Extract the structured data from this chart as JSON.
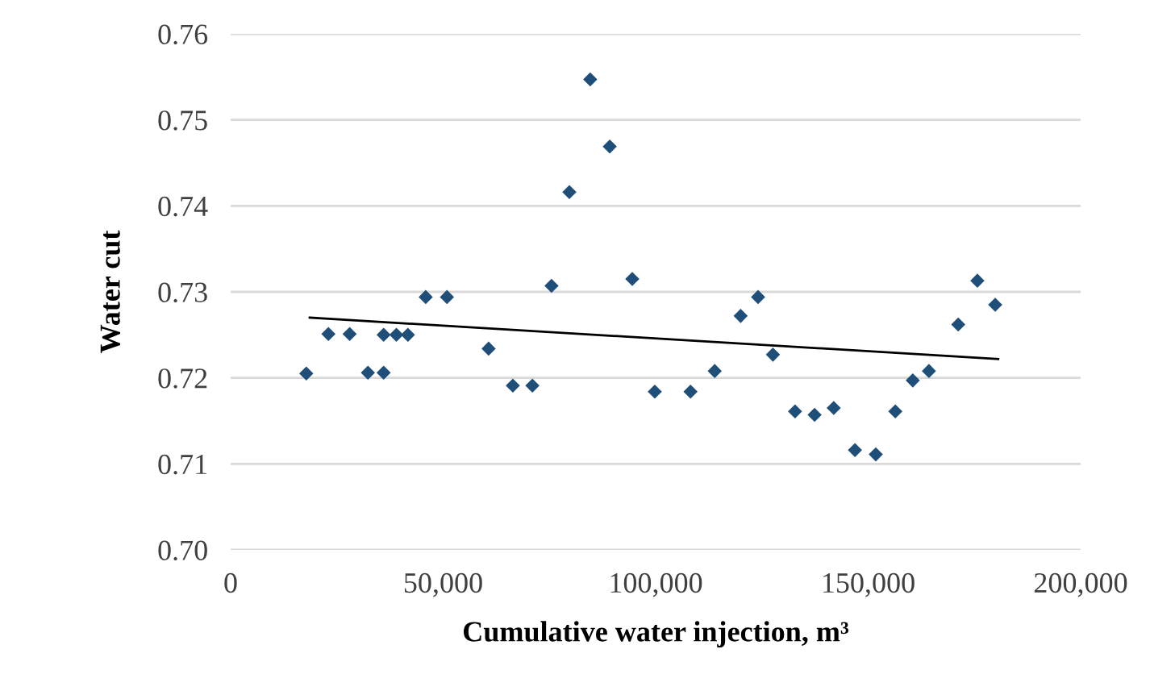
{
  "chart_data": {
    "type": "scatter",
    "xlabel": "Cumulative water injection, m³",
    "ylabel": "Water cut",
    "xlim": [
      0,
      200000
    ],
    "xticks": [
      {
        "value": 0,
        "label": "0"
      },
      {
        "value": 50000,
        "label": "50,000"
      },
      {
        "value": 100000,
        "label": "100,000"
      },
      {
        "value": 150000,
        "label": "150,000"
      },
      {
        "value": 200000,
        "label": "200,000"
      }
    ],
    "ylim": [
      0.7,
      0.76
    ],
    "yticks": [
      {
        "value": 0.7,
        "label": "0.70"
      },
      {
        "value": 0.71,
        "label": "0.71"
      },
      {
        "value": 0.72,
        "label": "0.72"
      },
      {
        "value": 0.73,
        "label": "0.73"
      },
      {
        "value": 0.74,
        "label": "0.74"
      },
      {
        "value": 0.75,
        "label": "0.75"
      },
      {
        "value": 0.76,
        "label": "0.76"
      }
    ],
    "grid": "y",
    "legend": false,
    "series": [
      {
        "marker": "diamond",
        "color": "#1f4e79",
        "x": [
          17800,
          23000,
          28000,
          32300,
          36000,
          36000,
          39000,
          41700,
          45900,
          50900,
          60700,
          66400,
          71000,
          75500,
          79700,
          84600,
          89200,
          94500,
          99800,
          108200,
          113900,
          120000,
          124100,
          127600,
          132800,
          137400,
          141900,
          146900,
          151800,
          156400,
          160500,
          164300,
          171200,
          175700,
          179900
        ],
        "values": [
          0.7205,
          0.7251,
          0.7251,
          0.7206,
          0.7206,
          0.725,
          0.725,
          0.725,
          0.7294,
          0.7294,
          0.7234,
          0.7191,
          0.7191,
          0.7307,
          0.7416,
          0.7547,
          0.7469,
          0.7315,
          0.7184,
          0.7184,
          0.7208,
          0.7272,
          0.7294,
          0.7227,
          0.7161,
          0.7157,
          0.7165,
          0.7116,
          0.7111,
          0.7161,
          0.7197,
          0.7208,
          0.7262,
          0.7313,
          0.7285
        ]
      },
      {
        "type": "line",
        "color": "#000000",
        "x": [
          18600,
          180600
        ],
        "values": [
          0.727,
          0.7222
        ]
      }
    ]
  }
}
